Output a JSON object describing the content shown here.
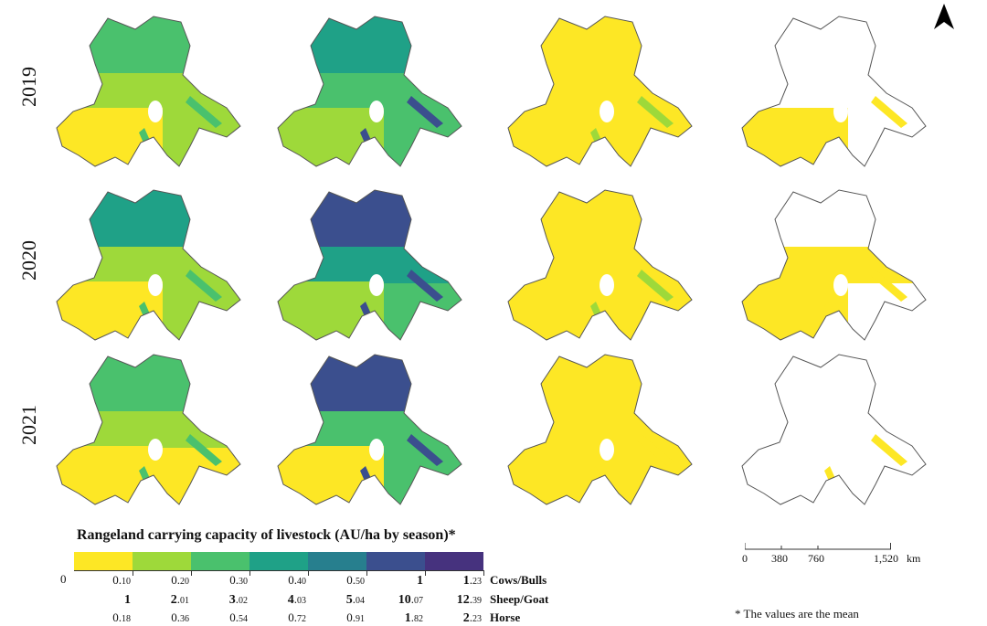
{
  "years": [
    "2019",
    "2020",
    "2021"
  ],
  "legend": {
    "title": "Rangeland carrying capacity of livestock (AU/ha by season)*",
    "zero": "0",
    "colors": [
      "#fde725",
      "#9ed93a",
      "#4ac16d",
      "#1fa187",
      "#277f8e",
      "#3b4f8e",
      "#46327e",
      "#440154"
    ],
    "rows": [
      {
        "label": "Cows/Bulls",
        "cells": [
          [
            "",
            "0.",
            "10"
          ],
          [
            "",
            "0.",
            "20"
          ],
          [
            "",
            "0.",
            "30"
          ],
          [
            "",
            "0.",
            "40"
          ],
          [
            "",
            "0.",
            "50"
          ],
          [
            "1",
            "",
            ""
          ],
          [
            "1",
            ".",
            "23"
          ]
        ]
      },
      {
        "label": "Sheep/Goat",
        "cells": [
          [
            "1",
            "",
            ""
          ],
          [
            "2",
            ".",
            "01"
          ],
          [
            "3",
            ".",
            "02"
          ],
          [
            "4",
            ".",
            "03"
          ],
          [
            "5",
            ".",
            "04"
          ],
          [
            "10",
            ".",
            "07"
          ],
          [
            "12",
            ".",
            "39"
          ]
        ]
      },
      {
        "label": "Horse",
        "cells": [
          [
            "",
            "0.",
            "18"
          ],
          [
            "",
            "0.",
            "36"
          ],
          [
            "",
            "0.",
            "54"
          ],
          [
            "",
            "0.",
            "72"
          ],
          [
            "",
            "0.",
            "91"
          ],
          [
            "1",
            ".",
            "82"
          ],
          [
            "2",
            ".",
            "23"
          ]
        ]
      }
    ]
  },
  "scale": {
    "ticks": [
      "0",
      "380",
      "760",
      "1,520"
    ],
    "unit": "km"
  },
  "footnote": "* The values are the mean",
  "maps": [
    [
      {
        "fill": "#9ed93a",
        "north": "#4ac16d",
        "mid": "#9ed93a",
        "south": "#fde725",
        "streak": "#4ac16d"
      },
      {
        "fill": "#4ac16d",
        "north": "#1fa187",
        "mid": "#4ac16d",
        "south": "#9ed93a",
        "streak": "#3b4f8e"
      },
      {
        "fill": "#fde725",
        "north": "#fde725",
        "mid": "#fde725",
        "south": "#fde725",
        "streak": "#9ed93a"
      },
      {
        "fill": "#ffffff",
        "north": "#ffffff",
        "mid": "#ffffff",
        "south": "#fde725",
        "streak": "#fde725"
      }
    ],
    [
      {
        "fill": "#9ed93a",
        "north": "#1fa187",
        "mid": "#9ed93a",
        "south": "#fde725",
        "streak": "#4ac16d"
      },
      {
        "fill": "#4ac16d",
        "north": "#3b4f8e",
        "mid": "#1fa187",
        "south": "#9ed93a",
        "streak": "#3b4f8e"
      },
      {
        "fill": "#fde725",
        "north": "#fde725",
        "mid": "#fde725",
        "south": "#fde725",
        "streak": "#9ed93a"
      },
      {
        "fill": "#ffffff",
        "north": "#ffffff",
        "mid": "#fde725",
        "south": "#fde725",
        "streak": "#fde725"
      }
    ],
    [
      {
        "fill": "#fde725",
        "north": "#4ac16d",
        "mid": "#9ed93a",
        "south": "#fde725",
        "streak": "#4ac16d"
      },
      {
        "fill": "#4ac16d",
        "north": "#3b4f8e",
        "mid": "#4ac16d",
        "south": "#fde725",
        "streak": "#3b4f8e"
      },
      {
        "fill": "#fde725",
        "north": "#fde725",
        "mid": "#fde725",
        "south": "#fde725",
        "streak": "#fde725"
      },
      {
        "fill": "#ffffff",
        "north": "#ffffff",
        "mid": "#ffffff",
        "south": "#ffffff",
        "streak": "#fde725"
      }
    ]
  ]
}
